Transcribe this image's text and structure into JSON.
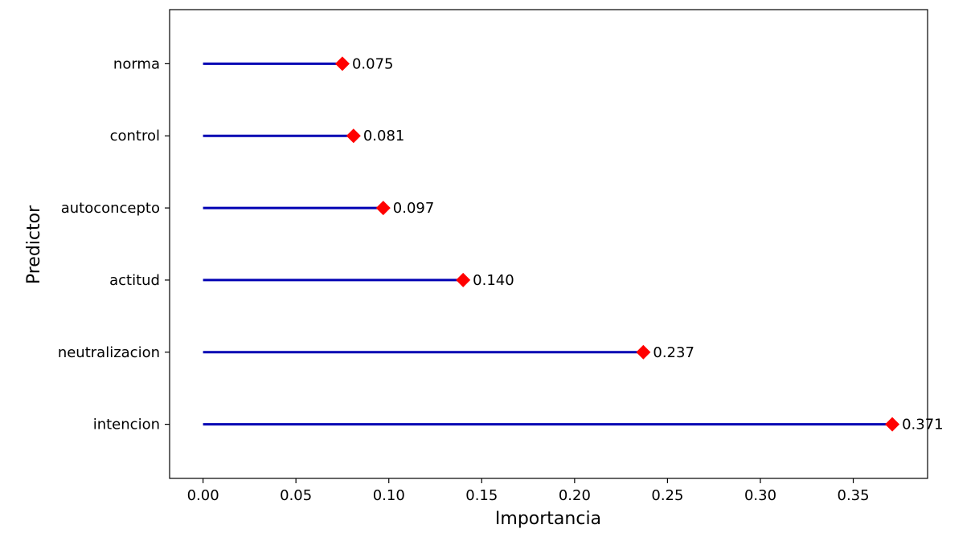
{
  "chart_data": {
    "type": "lollipop",
    "title": "",
    "xlabel": "Importancia",
    "ylabel": "Predictor",
    "xlim": [
      -0.018,
      0.39
    ],
    "grid": false,
    "legend": "none",
    "categories": [
      "intencion",
      "neutralizacion",
      "actitud",
      "autoconcepto",
      "control",
      "norma"
    ],
    "values": [
      0.371,
      0.237,
      0.14,
      0.097,
      0.081,
      0.075
    ],
    "value_labels": [
      "0.371",
      "0.237",
      "0.140",
      "0.097",
      "0.081",
      "0.075"
    ],
    "x_ticks": [
      0.0,
      0.05,
      0.1,
      0.15,
      0.2,
      0.25,
      0.3,
      0.35
    ],
    "x_tick_labels": [
      "0.00",
      "0.05",
      "0.10",
      "0.15",
      "0.20",
      "0.25",
      "0.30",
      "0.35"
    ],
    "colors": {
      "stem": "#0000b3",
      "marker": "#ff0000",
      "axis": "#000000"
    }
  }
}
